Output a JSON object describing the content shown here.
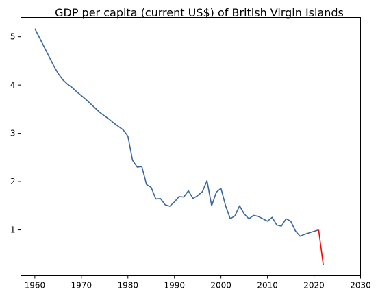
{
  "chart_data": {
    "type": "line",
    "title": "GDP per capita (current US$) of British Virgin Islands",
    "xlabel": "",
    "ylabel": "",
    "xlim": [
      1957,
      2030
    ],
    "ylim": [
      0.05,
      5.4
    ],
    "x_ticks": [
      1960,
      1970,
      1980,
      1990,
      2000,
      2010,
      2020,
      2030
    ],
    "y_ticks": [
      1,
      2,
      3,
      4,
      5
    ],
    "grid": false,
    "series": [
      {
        "color": "#3a66a0",
        "x": [
          1960,
          1961,
          1962,
          1963,
          1964,
          1965,
          1966,
          1967,
          1968,
          1969,
          1970,
          1971,
          1972,
          1973,
          1974,
          1975,
          1976,
          1977,
          1978,
          1979,
          1980,
          1981,
          1982,
          1983,
          1984,
          1985,
          1986,
          1987,
          1988,
          1989,
          1990,
          1991,
          1992,
          1993,
          1994,
          1995,
          1996,
          1997,
          1998,
          1999,
          2000,
          2001,
          2002,
          2003,
          2004,
          2005,
          2006,
          2007,
          2008,
          2009,
          2010,
          2011,
          2012,
          2013,
          2014,
          2015,
          2016,
          2017,
          2018,
          2019,
          2020,
          2021
        ],
        "y": [
          5.17,
          4.98,
          4.79,
          4.6,
          4.41,
          4.24,
          4.11,
          4.02,
          3.95,
          3.86,
          3.78,
          3.7,
          3.61,
          3.52,
          3.43,
          3.36,
          3.29,
          3.21,
          3.14,
          3.07,
          2.94,
          2.44,
          2.3,
          2.31,
          1.94,
          1.88,
          1.64,
          1.65,
          1.52,
          1.49,
          1.58,
          1.69,
          1.68,
          1.81,
          1.65,
          1.71,
          1.79,
          2.02,
          1.5,
          1.78,
          1.86,
          1.5,
          1.23,
          1.29,
          1.5,
          1.33,
          1.23,
          1.3,
          1.28,
          1.23,
          1.18,
          1.26,
          1.1,
          1.08,
          1.23,
          1.18,
          0.98,
          0.87,
          0.91,
          0.94,
          0.97,
          1.0
        ]
      },
      {
        "color": "#ff0000",
        "x": [
          2021,
          2022
        ],
        "y": [
          1.0,
          0.27
        ]
      }
    ]
  }
}
